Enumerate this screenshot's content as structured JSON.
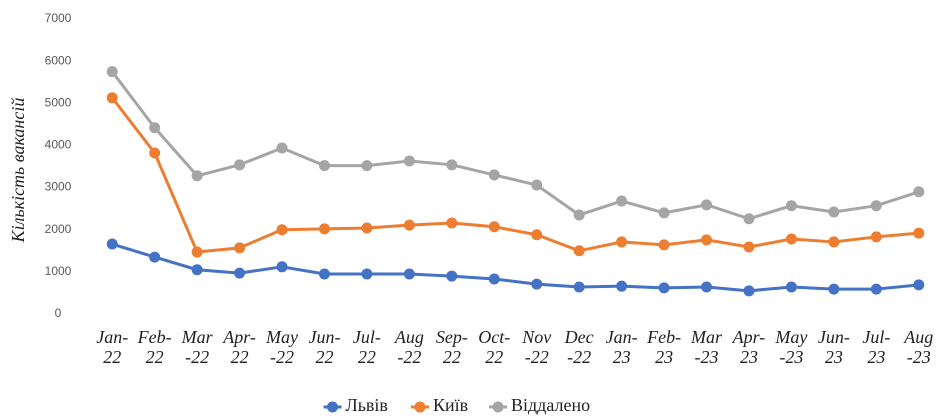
{
  "chart_data": {
    "type": "line",
    "y_label": "Кількість вакансій",
    "categories": [
      "Jan-\n22",
      "Feb-\n22",
      "Mar\n-22",
      "Apr-\n22",
      "May\n-22",
      "Jun-\n22",
      "Jul-\n22",
      "Aug\n-22",
      "Sep-\n22",
      "Oct-\n22",
      "Nov\n-22",
      "Dec\n-22",
      "Jan-\n23",
      "Feb-\n23",
      "Mar\n-23",
      "Apr-\n23",
      "May\n-23",
      "Jun-\n23",
      "Jul-\n23",
      "Aug\n-23"
    ],
    "series": [
      {
        "name": "Львів",
        "color": "#4472c4",
        "values": [
          1660,
          1350,
          1050,
          970,
          1120,
          950,
          950,
          950,
          900,
          830,
          710,
          640,
          660,
          620,
          640,
          550,
          640,
          590,
          590,
          690
        ]
      },
      {
        "name": "Київ",
        "color": "#ed7d31",
        "values": [
          5130,
          3820,
          1470,
          1570,
          2000,
          2020,
          2040,
          2110,
          2160,
          2070,
          1880,
          1500,
          1710,
          1640,
          1760,
          1590,
          1780,
          1710,
          1830,
          1920
        ]
      },
      {
        "name": "Віддалено",
        "color": "#a5a5a5",
        "values": [
          5750,
          4420,
          3280,
          3540,
          3940,
          3520,
          3520,
          3630,
          3540,
          3300,
          3060,
          2350,
          2680,
          2400,
          2590,
          2260,
          2570,
          2420,
          2570,
          2900
        ]
      }
    ],
    "ylim": [
      0,
      7000
    ],
    "yticks": [
      0,
      1000,
      2000,
      3000,
      4000,
      5000,
      6000,
      7000
    ],
    "grid": false,
    "legend": "bottom"
  }
}
